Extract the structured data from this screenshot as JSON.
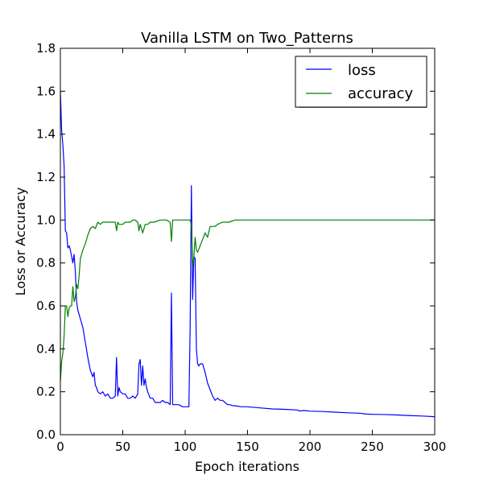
{
  "chart_data": {
    "type": "line",
    "title": "Vanilla LSTM on Two_Patterns",
    "xlabel": "Epoch iterations",
    "ylabel": "Loss or Accuracy",
    "xlim": [
      0,
      300
    ],
    "ylim": [
      0,
      1.8
    ],
    "xticks": [
      "0",
      "50",
      "100",
      "150",
      "200",
      "250",
      "300"
    ],
    "yticks": [
      "0.0",
      "0.2",
      "0.4",
      "0.6",
      "0.8",
      "1.0",
      "1.2",
      "1.4",
      "1.6",
      "1.8"
    ],
    "grid": false,
    "legend_position": "top-right",
    "series": [
      {
        "name": "loss",
        "color": "#0000ff",
        "x": [
          0,
          1,
          2,
          3,
          4,
          5,
          6,
          7,
          8,
          9,
          10,
          11,
          12,
          13,
          14,
          15,
          16,
          18,
          20,
          22,
          24,
          26,
          27,
          28,
          29,
          30,
          32,
          34,
          36,
          38,
          40,
          42,
          44,
          45,
          46,
          47,
          48,
          50,
          52,
          54,
          56,
          58,
          60,
          62,
          63,
          64,
          65,
          66,
          67,
          68,
          69,
          70,
          72,
          74,
          76,
          78,
          80,
          82,
          84,
          86,
          88,
          89,
          90,
          92,
          95,
          98,
          100,
          103,
          104,
          105,
          106,
          107,
          108,
          109,
          110,
          111,
          112,
          114,
          116,
          118,
          120,
          122,
          124,
          126,
          128,
          130,
          132,
          134,
          136,
          138,
          140,
          145,
          150,
          160,
          170,
          180,
          190,
          192,
          195,
          200,
          210,
          220,
          230,
          240,
          245,
          250,
          260,
          270,
          280,
          290,
          300
        ],
        "y": [
          1.6,
          1.42,
          1.35,
          1.25,
          0.95,
          0.94,
          0.87,
          0.88,
          0.86,
          0.83,
          0.8,
          0.84,
          0.76,
          0.62,
          0.58,
          0.56,
          0.54,
          0.5,
          0.43,
          0.36,
          0.3,
          0.27,
          0.29,
          0.23,
          0.22,
          0.2,
          0.19,
          0.2,
          0.18,
          0.19,
          0.17,
          0.17,
          0.18,
          0.36,
          0.18,
          0.22,
          0.2,
          0.19,
          0.19,
          0.17,
          0.17,
          0.18,
          0.17,
          0.19,
          0.33,
          0.35,
          0.23,
          0.32,
          0.23,
          0.26,
          0.22,
          0.2,
          0.17,
          0.17,
          0.15,
          0.15,
          0.15,
          0.16,
          0.15,
          0.15,
          0.14,
          0.66,
          0.14,
          0.14,
          0.14,
          0.13,
          0.13,
          0.13,
          0.5,
          1.16,
          0.63,
          0.83,
          0.82,
          0.4,
          0.33,
          0.32,
          0.33,
          0.33,
          0.29,
          0.24,
          0.21,
          0.18,
          0.16,
          0.17,
          0.16,
          0.16,
          0.15,
          0.14,
          0.14,
          0.135,
          0.135,
          0.13,
          0.13,
          0.125,
          0.12,
          0.118,
          0.115,
          0.11,
          0.113,
          0.11,
          0.108,
          0.105,
          0.102,
          0.1,
          0.096,
          0.095,
          0.094,
          0.092,
          0.089,
          0.087,
          0.084
        ]
      },
      {
        "name": "accuracy",
        "color": "#008000",
        "x": [
          0,
          1,
          2,
          3,
          4,
          5,
          6,
          7,
          8,
          9,
          10,
          11,
          12,
          13,
          14,
          15,
          16,
          18,
          20,
          22,
          24,
          26,
          28,
          30,
          32,
          34,
          36,
          38,
          40,
          42,
          44,
          45,
          46,
          47,
          48,
          50,
          52,
          54,
          56,
          58,
          60,
          62,
          63,
          64,
          65,
          66,
          67,
          68,
          70,
          72,
          75,
          80,
          85,
          88,
          89,
          90,
          92,
          95,
          100,
          104,
          105,
          106,
          107,
          108,
          109,
          110,
          112,
          114,
          116,
          118,
          120,
          122,
          124,
          126,
          130,
          135,
          140,
          145,
          150,
          200,
          250,
          300
        ],
        "y": [
          0.25,
          0.34,
          0.38,
          0.46,
          0.6,
          0.6,
          0.55,
          0.59,
          0.6,
          0.6,
          0.69,
          0.62,
          0.64,
          0.7,
          0.68,
          0.74,
          0.82,
          0.86,
          0.89,
          0.93,
          0.96,
          0.97,
          0.96,
          0.99,
          0.98,
          0.99,
          0.99,
          0.99,
          0.99,
          0.99,
          0.99,
          0.95,
          0.99,
          0.98,
          0.98,
          0.98,
          0.99,
          0.99,
          0.99,
          1.0,
          1.0,
          0.99,
          0.95,
          0.98,
          0.96,
          0.94,
          0.96,
          0.98,
          0.98,
          0.99,
          0.99,
          1.0,
          1.0,
          0.99,
          0.9,
          1.0,
          1.0,
          1.0,
          1.0,
          1.0,
          0.98,
          0.78,
          0.83,
          0.92,
          0.86,
          0.85,
          0.88,
          0.91,
          0.94,
          0.92,
          0.97,
          0.97,
          0.97,
          0.98,
          0.99,
          0.99,
          1.0,
          1.0,
          1.0,
          1.0,
          1.0,
          1.0
        ]
      }
    ]
  }
}
